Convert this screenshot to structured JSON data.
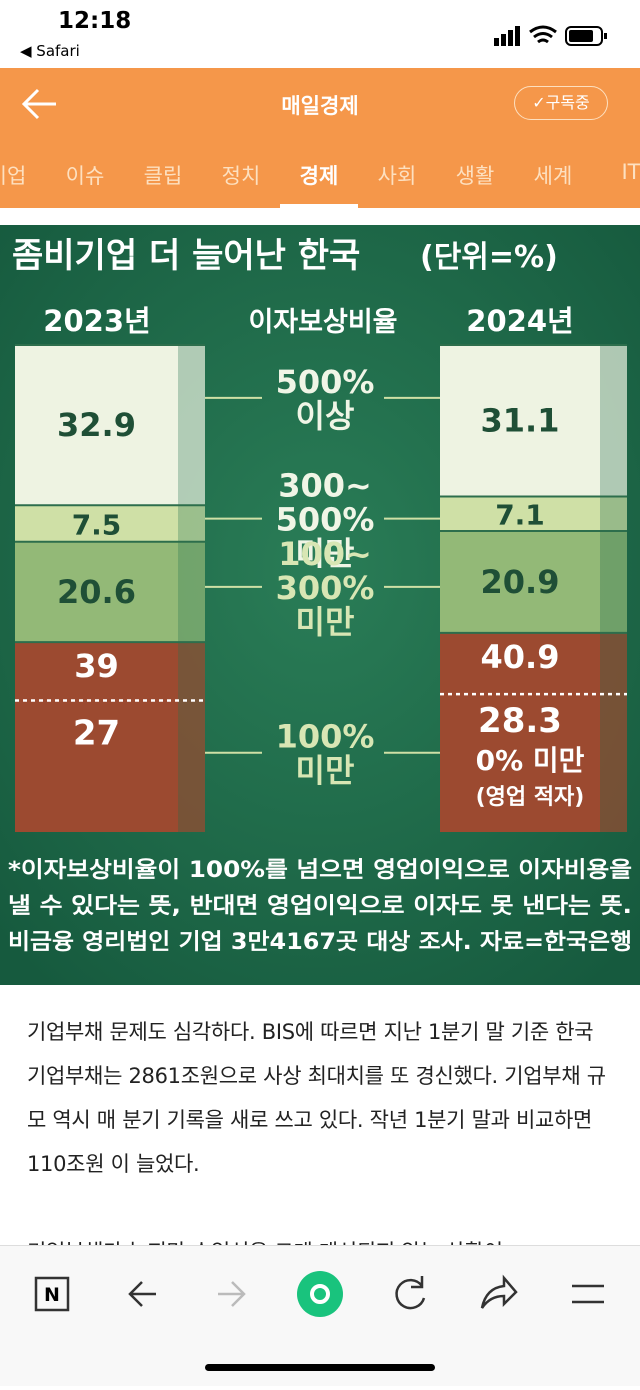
{
  "status": {
    "time": "12:18",
    "back": "◀ Safari"
  },
  "header": {
    "title": "매일경제",
    "subscribe": "구독중"
  },
  "tabs": [
    "기업",
    "이슈",
    "클립",
    "정치",
    "경제",
    "사회",
    "생활",
    "세계",
    "IT"
  ],
  "active_tab": 4,
  "infographic": {
    "title": "좀비기업 더 늘어난 한국",
    "unit": "(단위=%)",
    "middle_header": "이자보상비율",
    "categories": [
      [
        "500%",
        "이상"
      ],
      [
        "300~",
        "500%",
        "미만"
      ],
      [
        "100~",
        "300%",
        "미만"
      ],
      [
        "100%",
        "미만"
      ]
    ],
    "colors": [
      "#eef3e2",
      "#cfe0a6",
      "#93b977",
      "#9c4a30"
    ],
    "years": [
      {
        "label": "2023년",
        "values": [
          32.9,
          7.5,
          20.6,
          39.0
        ],
        "deficit": 27.0
      },
      {
        "label": "2024년",
        "values": [
          31.1,
          7.1,
          20.9,
          40.9
        ],
        "deficit": 28.3
      }
    ],
    "deficit_label": [
      "0% 미만",
      "(영업 적자)"
    ],
    "footnote": [
      "*이자보상비율이 100%를 넘으면 영업이익으로 이자비용을",
      "낼 수 있다는 뜻, 반대면 영업이익으로 이자도 못 낸다는 뜻.",
      "비금융 영리법인 기업 3만4167곳 대상 조사. 자료=한국은행"
    ]
  },
  "article": [
    "기업부채 문제도 심각하다. BIS에 따르면 지난 1분기 말 기준 한국 기업부채는 2861조원으로 사상 최대치를 또 경신했다. 기업부채 규모 역시 매 분기 기록을 새로 쓰고 있다. 작년 1분기 말과 비교하면 110조원 이 늘었다.",
    "기업부채가 늘지만 수익성은 크게 개선되지 않는 상황이"
  ]
}
